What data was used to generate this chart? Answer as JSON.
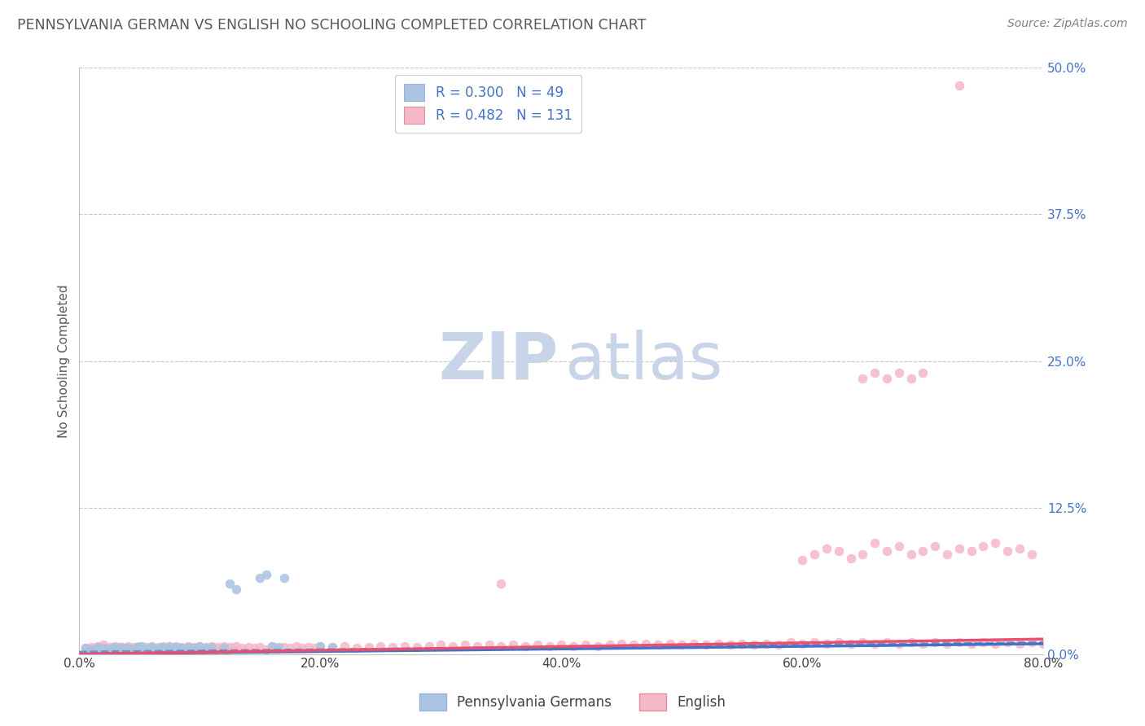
{
  "title": "PENNSYLVANIA GERMAN VS ENGLISH NO SCHOOLING COMPLETED CORRELATION CHART",
  "source": "Source: ZipAtlas.com",
  "ylabel": "No Schooling Completed",
  "xlim": [
    0.0,
    0.8
  ],
  "ylim": [
    0.0,
    0.5
  ],
  "xticks": [
    0.0,
    0.2,
    0.4,
    0.6,
    0.8
  ],
  "xticklabels": [
    "0.0%",
    "20.0%",
    "40.0%",
    "60.0%",
    "80.0%"
  ],
  "yticks_right": [
    0.0,
    0.125,
    0.25,
    0.375,
    0.5
  ],
  "yticklabels_right": [
    "0.0%",
    "12.5%",
    "25.0%",
    "37.5%",
    "50.0%"
  ],
  "color_blue": "#aac4e2",
  "color_pink": "#f5b8c8",
  "color_blue_text": "#4472c4",
  "color_title": "#595959",
  "color_source": "#808080",
  "color_axis_label": "#595959",
  "color_tick_right": "#4472c4",
  "grid_color": "#c8c8c8",
  "watermark_zip_color": "#c8d4e8",
  "watermark_atlas_color": "#c8d4e8",
  "line_blue_color": "#4472c4",
  "line_pink_color": "#e85070",
  "line_dashed_color": "#7090c0",
  "scatter_blue": [
    [
      0.005,
      0.005
    ],
    [
      0.008,
      0.003
    ],
    [
      0.01,
      0.004
    ],
    [
      0.012,
      0.002
    ],
    [
      0.015,
      0.006
    ],
    [
      0.018,
      0.004
    ],
    [
      0.02,
      0.005
    ],
    [
      0.022,
      0.003
    ],
    [
      0.025,
      0.004
    ],
    [
      0.028,
      0.006
    ],
    [
      0.03,
      0.005
    ],
    [
      0.032,
      0.003
    ],
    [
      0.035,
      0.006
    ],
    [
      0.038,
      0.004
    ],
    [
      0.04,
      0.005
    ],
    [
      0.042,
      0.003
    ],
    [
      0.045,
      0.004
    ],
    [
      0.048,
      0.006
    ],
    [
      0.05,
      0.005
    ],
    [
      0.052,
      0.007
    ],
    [
      0.055,
      0.004
    ],
    [
      0.058,
      0.003
    ],
    [
      0.06,
      0.006
    ],
    [
      0.062,
      0.005
    ],
    [
      0.065,
      0.004
    ],
    [
      0.068,
      0.006
    ],
    [
      0.07,
      0.005
    ],
    [
      0.072,
      0.003
    ],
    [
      0.075,
      0.007
    ],
    [
      0.078,
      0.005
    ],
    [
      0.08,
      0.006
    ],
    [
      0.082,
      0.004
    ],
    [
      0.085,
      0.005
    ],
    [
      0.088,
      0.003
    ],
    [
      0.09,
      0.006
    ],
    [
      0.095,
      0.005
    ],
    [
      0.1,
      0.007
    ],
    [
      0.105,
      0.005
    ],
    [
      0.11,
      0.006
    ],
    [
      0.12,
      0.005
    ],
    [
      0.125,
      0.06
    ],
    [
      0.13,
      0.055
    ],
    [
      0.15,
      0.065
    ],
    [
      0.155,
      0.068
    ],
    [
      0.16,
      0.007
    ],
    [
      0.165,
      0.006
    ],
    [
      0.17,
      0.065
    ],
    [
      0.2,
      0.007
    ],
    [
      0.21,
      0.006
    ]
  ],
  "scatter_pink": [
    [
      0.005,
      0.005
    ],
    [
      0.008,
      0.003
    ],
    [
      0.01,
      0.006
    ],
    [
      0.012,
      0.004
    ],
    [
      0.015,
      0.007
    ],
    [
      0.018,
      0.005
    ],
    [
      0.02,
      0.008
    ],
    [
      0.022,
      0.004
    ],
    [
      0.025,
      0.006
    ],
    [
      0.028,
      0.005
    ],
    [
      0.03,
      0.007
    ],
    [
      0.032,
      0.004
    ],
    [
      0.035,
      0.006
    ],
    [
      0.038,
      0.005
    ],
    [
      0.04,
      0.007
    ],
    [
      0.042,
      0.004
    ],
    [
      0.045,
      0.006
    ],
    [
      0.048,
      0.005
    ],
    [
      0.05,
      0.007
    ],
    [
      0.052,
      0.004
    ],
    [
      0.055,
      0.006
    ],
    [
      0.058,
      0.005
    ],
    [
      0.06,
      0.007
    ],
    [
      0.062,
      0.004
    ],
    [
      0.065,
      0.006
    ],
    [
      0.068,
      0.005
    ],
    [
      0.07,
      0.007
    ],
    [
      0.072,
      0.004
    ],
    [
      0.075,
      0.006
    ],
    [
      0.078,
      0.005
    ],
    [
      0.08,
      0.007
    ],
    [
      0.082,
      0.004
    ],
    [
      0.085,
      0.006
    ],
    [
      0.088,
      0.005
    ],
    [
      0.09,
      0.007
    ],
    [
      0.092,
      0.004
    ],
    [
      0.095,
      0.006
    ],
    [
      0.098,
      0.005
    ],
    [
      0.1,
      0.007
    ],
    [
      0.102,
      0.004
    ],
    [
      0.105,
      0.006
    ],
    [
      0.108,
      0.005
    ],
    [
      0.11,
      0.007
    ],
    [
      0.112,
      0.004
    ],
    [
      0.115,
      0.006
    ],
    [
      0.118,
      0.005
    ],
    [
      0.12,
      0.007
    ],
    [
      0.122,
      0.004
    ],
    [
      0.125,
      0.006
    ],
    [
      0.128,
      0.005
    ],
    [
      0.13,
      0.007
    ],
    [
      0.135,
      0.005
    ],
    [
      0.14,
      0.006
    ],
    [
      0.145,
      0.005
    ],
    [
      0.15,
      0.006
    ],
    [
      0.155,
      0.004
    ],
    [
      0.16,
      0.007
    ],
    [
      0.165,
      0.005
    ],
    [
      0.17,
      0.006
    ],
    [
      0.175,
      0.005
    ],
    [
      0.18,
      0.007
    ],
    [
      0.185,
      0.005
    ],
    [
      0.19,
      0.006
    ],
    [
      0.195,
      0.005
    ],
    [
      0.2,
      0.007
    ],
    [
      0.21,
      0.006
    ],
    [
      0.22,
      0.007
    ],
    [
      0.23,
      0.005
    ],
    [
      0.24,
      0.006
    ],
    [
      0.25,
      0.007
    ],
    [
      0.26,
      0.006
    ],
    [
      0.27,
      0.007
    ],
    [
      0.28,
      0.006
    ],
    [
      0.29,
      0.007
    ],
    [
      0.3,
      0.008
    ],
    [
      0.31,
      0.007
    ],
    [
      0.32,
      0.008
    ],
    [
      0.33,
      0.007
    ],
    [
      0.34,
      0.008
    ],
    [
      0.35,
      0.007
    ],
    [
      0.36,
      0.008
    ],
    [
      0.37,
      0.007
    ],
    [
      0.38,
      0.008
    ],
    [
      0.39,
      0.007
    ],
    [
      0.35,
      0.06
    ],
    [
      0.4,
      0.008
    ],
    [
      0.41,
      0.007
    ],
    [
      0.42,
      0.008
    ],
    [
      0.43,
      0.007
    ],
    [
      0.44,
      0.008
    ],
    [
      0.45,
      0.009
    ],
    [
      0.46,
      0.008
    ],
    [
      0.47,
      0.009
    ],
    [
      0.48,
      0.008
    ],
    [
      0.49,
      0.009
    ],
    [
      0.5,
      0.008
    ],
    [
      0.51,
      0.009
    ],
    [
      0.52,
      0.008
    ],
    [
      0.53,
      0.009
    ],
    [
      0.54,
      0.008
    ],
    [
      0.55,
      0.009
    ],
    [
      0.56,
      0.008
    ],
    [
      0.57,
      0.009
    ],
    [
      0.58,
      0.008
    ],
    [
      0.59,
      0.01
    ],
    [
      0.6,
      0.009
    ],
    [
      0.61,
      0.01
    ],
    [
      0.62,
      0.009
    ],
    [
      0.63,
      0.01
    ],
    [
      0.64,
      0.009
    ],
    [
      0.65,
      0.01
    ],
    [
      0.66,
      0.009
    ],
    [
      0.67,
      0.01
    ],
    [
      0.68,
      0.009
    ],
    [
      0.69,
      0.01
    ],
    [
      0.7,
      0.009
    ],
    [
      0.71,
      0.01
    ],
    [
      0.72,
      0.009
    ],
    [
      0.73,
      0.01
    ],
    [
      0.74,
      0.009
    ],
    [
      0.75,
      0.01
    ],
    [
      0.76,
      0.009
    ],
    [
      0.77,
      0.01
    ],
    [
      0.78,
      0.009
    ],
    [
      0.79,
      0.01
    ],
    [
      0.8,
      0.009
    ],
    [
      0.6,
      0.08
    ],
    [
      0.61,
      0.085
    ],
    [
      0.62,
      0.09
    ],
    [
      0.63,
      0.088
    ],
    [
      0.64,
      0.082
    ],
    [
      0.65,
      0.085
    ],
    [
      0.66,
      0.095
    ],
    [
      0.67,
      0.088
    ],
    [
      0.68,
      0.092
    ],
    [
      0.69,
      0.085
    ],
    [
      0.7,
      0.088
    ],
    [
      0.71,
      0.092
    ],
    [
      0.72,
      0.085
    ],
    [
      0.73,
      0.09
    ],
    [
      0.74,
      0.088
    ],
    [
      0.75,
      0.092
    ],
    [
      0.76,
      0.095
    ],
    [
      0.77,
      0.088
    ],
    [
      0.78,
      0.09
    ],
    [
      0.79,
      0.085
    ],
    [
      0.65,
      0.235
    ],
    [
      0.66,
      0.24
    ],
    [
      0.67,
      0.235
    ],
    [
      0.68,
      0.24
    ],
    [
      0.69,
      0.235
    ],
    [
      0.7,
      0.24
    ],
    [
      0.73,
      0.485
    ]
  ],
  "line_pink_intercept": 0.0,
  "line_pink_slope": 0.016,
  "line_blue_intercept": 0.0,
  "line_blue_slope": 0.011
}
